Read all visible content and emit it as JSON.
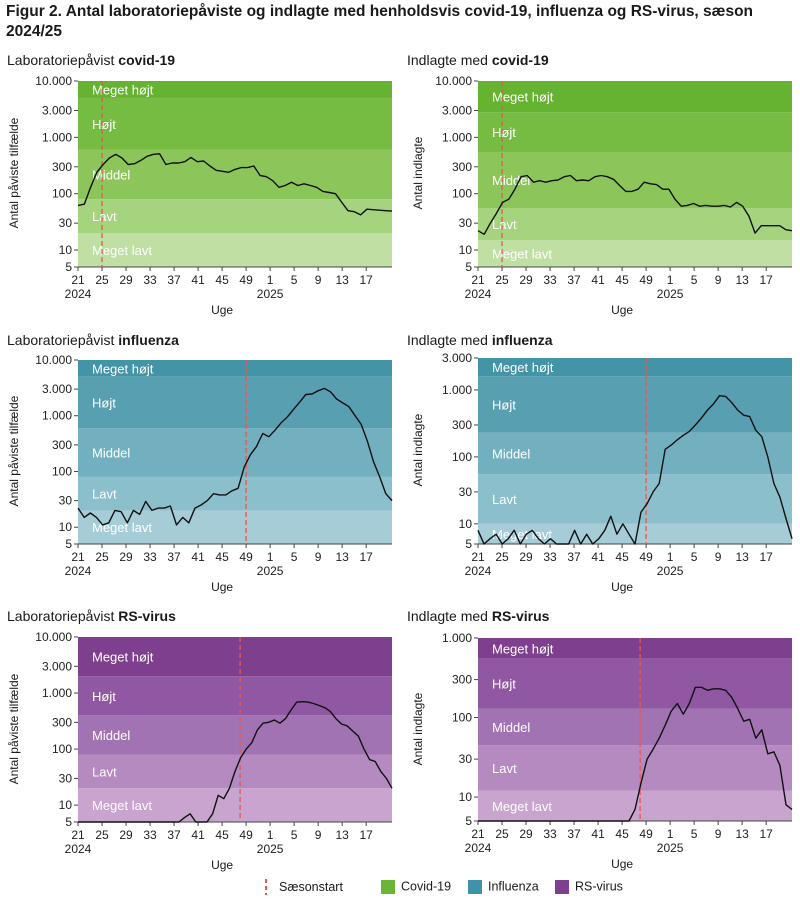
{
  "figure_title": "Figur 2. Antal laboratoriepåviste og indlagte med henholdsvis covid-19, influenza og RS-virus, sæson 2024/25",
  "x_axis_label": "Uge",
  "legend": [
    {
      "label": "Sæsonstart",
      "kind": "dash",
      "color": "#e8584f"
    },
    {
      "label": "Covid-19",
      "kind": "swatch",
      "color": "#6ab536"
    },
    {
      "label": "Influenza",
      "kind": "swatch",
      "color": "#3d93a8"
    },
    {
      "label": "RS-virus",
      "kind": "swatch",
      "color": "#7e3f8f"
    }
  ],
  "chart_data": [
    {
      "type": "line",
      "title_prefix": "Laboratoriepåvist ",
      "title_bold": "covid-19",
      "ylabel": "Antal påviste tilfælde",
      "y_scale": "log",
      "ylim": [
        5,
        10000
      ],
      "y_ticks": [
        5,
        10,
        30,
        100,
        300,
        1000,
        3000,
        10000
      ],
      "y_tick_labels": [
        "5",
        "10",
        "30",
        "100",
        "300",
        "1.000",
        "3.000",
        "10.000"
      ],
      "x_tick_labels": [
        "21",
        "25",
        "29",
        "33",
        "37",
        "41",
        "45",
        "49",
        "1",
        "5",
        "9",
        "13",
        "17"
      ],
      "x_year_labels": [
        "2024",
        "2025"
      ],
      "season_start_week": "25",
      "bands": [
        {
          "label": "Meget lavt",
          "from": 5,
          "to": 20,
          "color": "#bfdfa3"
        },
        {
          "label": "Lavt",
          "from": 20,
          "to": 80,
          "color": "#a6d37d"
        },
        {
          "label": "Middel",
          "from": 80,
          "to": 600,
          "color": "#8cc65b"
        },
        {
          "label": "Højt",
          "from": 600,
          "to": 5000,
          "color": "#76bb42"
        },
        {
          "label": "Meget højt",
          "from": 5000,
          "to": 10000,
          "color": "#66b331"
        }
      ],
      "series": [
        {
          "values": [
            62,
            65,
            130,
            240,
            330,
            430,
            500,
            430,
            330,
            340,
            390,
            460,
            500,
            510,
            330,
            350,
            350,
            370,
            440,
            370,
            380,
            310,
            260,
            250,
            240,
            270,
            290,
            290,
            310,
            210,
            200,
            170,
            130,
            140,
            160,
            140,
            150,
            140,
            130,
            110,
            105,
            100,
            70,
            50,
            48,
            42,
            53,
            52,
            51,
            50,
            49
          ]
        }
      ]
    },
    {
      "type": "line",
      "title_prefix": "Indlagte med ",
      "title_bold": "covid-19",
      "ylabel": "Antal indlagte",
      "y_scale": "log",
      "ylim": [
        5,
        10000
      ],
      "y_ticks": [
        5,
        10,
        30,
        100,
        300,
        1000,
        3000,
        10000
      ],
      "y_tick_labels": [
        "5",
        "10",
        "30",
        "100",
        "300",
        "1.000",
        "3.000",
        "10.000"
      ],
      "x_tick_labels": [
        "21",
        "25",
        "29",
        "33",
        "37",
        "41",
        "45",
        "49",
        "1",
        "5",
        "9",
        "13",
        "17"
      ],
      "x_year_labels": [
        "2024",
        "2025"
      ],
      "season_start_week": "25",
      "bands": [
        {
          "label": "Meget lavt",
          "from": 5,
          "to": 15,
          "color": "#bfdfa3"
        },
        {
          "label": "Lavt",
          "from": 15,
          "to": 55,
          "color": "#a6d37d"
        },
        {
          "label": "Middel",
          "from": 55,
          "to": 550,
          "color": "#8cc65b"
        },
        {
          "label": "Højt",
          "from": 550,
          "to": 2800,
          "color": "#76bb42"
        },
        {
          "label": "Meget højt",
          "from": 2800,
          "to": 10000,
          "color": "#66b331"
        }
      ],
      "series": [
        {
          "values": [
            22,
            19,
            30,
            45,
            70,
            80,
            120,
            200,
            210,
            160,
            170,
            160,
            170,
            175,
            200,
            210,
            170,
            175,
            170,
            200,
            210,
            200,
            180,
            140,
            110,
            110,
            120,
            160,
            150,
            145,
            120,
            120,
            80,
            60,
            62,
            67,
            60,
            62,
            60,
            60,
            62,
            58,
            70,
            60,
            40,
            20,
            27,
            27,
            27,
            27,
            23,
            22
          ]
        }
      ]
    },
    {
      "type": "line",
      "title_prefix": "Laboratoriepåvist ",
      "title_bold": "influenza",
      "ylabel": "Antal påviste tilfælde",
      "y_scale": "log",
      "ylim": [
        5,
        10000
      ],
      "y_ticks": [
        5,
        10,
        30,
        100,
        300,
        1000,
        3000,
        10000
      ],
      "y_tick_labels": [
        "5",
        "10",
        "30",
        "100",
        "300",
        "1.000",
        "3.000",
        "10.000"
      ],
      "x_tick_labels": [
        "21",
        "25",
        "29",
        "33",
        "37",
        "41",
        "45",
        "49",
        "1",
        "5",
        "9",
        "13",
        "17"
      ],
      "x_year_labels": [
        "2024",
        "2025"
      ],
      "season_start_week": "49",
      "bands": [
        {
          "label": "Meget lavt",
          "from": 5,
          "to": 20,
          "color": "#a5ccd7"
        },
        {
          "label": "Lavt",
          "from": 20,
          "to": 80,
          "color": "#8cbfcc"
        },
        {
          "label": "Middel",
          "from": 80,
          "to": 600,
          "color": "#72b0c0"
        },
        {
          "label": "Højt",
          "from": 600,
          "to": 5000,
          "color": "#589fb1"
        },
        {
          "label": "Meget højt",
          "from": 5000,
          "to": 10000,
          "color": "#4494a7"
        }
      ],
      "series": [
        {
          "values": [
            22,
            15,
            18,
            15,
            11,
            12,
            20,
            19,
            12,
            20,
            17,
            29,
            20,
            22,
            22,
            24,
            11,
            15,
            12,
            22,
            25,
            30,
            40,
            38,
            38,
            45,
            50,
            120,
            200,
            280,
            480,
            420,
            550,
            750,
            950,
            1300,
            1750,
            2400,
            2450,
            2800,
            3100,
            2700,
            2000,
            1700,
            1450,
            1000,
            700,
            350,
            150,
            80,
            40,
            30
          ]
        }
      ]
    },
    {
      "type": "line",
      "title_prefix": "Indlagte med ",
      "title_bold": "influenza",
      "ylabel": "Antal indlagte",
      "y_scale": "log",
      "ylim": [
        5,
        3000
      ],
      "y_ticks": [
        5,
        10,
        30,
        100,
        300,
        1000,
        3000
      ],
      "y_tick_labels": [
        "5",
        "10",
        "30",
        "100",
        "300",
        "1.000",
        "3.000"
      ],
      "x_tick_labels": [
        "21",
        "25",
        "29",
        "33",
        "37",
        "41",
        "45",
        "49",
        "1",
        "5",
        "9",
        "13",
        "17"
      ],
      "x_year_labels": [
        "2024",
        "2025"
      ],
      "season_start_week": "49",
      "bands": [
        {
          "label": "Meget lavt",
          "from": 5,
          "to": 10,
          "color": "#a5ccd7"
        },
        {
          "label": "Lavt",
          "from": 10,
          "to": 55,
          "color": "#8cbfcc"
        },
        {
          "label": "Middel",
          "from": 55,
          "to": 230,
          "color": "#72b0c0"
        },
        {
          "label": "Højt",
          "from": 230,
          "to": 1600,
          "color": "#589fb1"
        },
        {
          "label": "Meget højt",
          "from": 1600,
          "to": 3000,
          "color": "#4494a7"
        }
      ],
      "series": [
        {
          "values": [
            8,
            5,
            6,
            7,
            5,
            6,
            8,
            5,
            7,
            8,
            6,
            5,
            6,
            5,
            5,
            5,
            8,
            5,
            7,
            5,
            6,
            8,
            13,
            7,
            10,
            7,
            5,
            15,
            20,
            30,
            40,
            130,
            150,
            180,
            210,
            240,
            300,
            380,
            500,
            620,
            820,
            800,
            650,
            500,
            420,
            400,
            250,
            200,
            100,
            40,
            25,
            12,
            6
          ]
        }
      ]
    },
    {
      "type": "line",
      "title_prefix": "Laboratoriepåvist ",
      "title_bold": "RS-virus",
      "ylabel": "Antal påviste tilfælde",
      "y_scale": "log",
      "ylim": [
        5,
        10000
      ],
      "y_ticks": [
        5,
        10,
        30,
        100,
        300,
        1000,
        3000,
        10000
      ],
      "y_tick_labels": [
        "5",
        "10",
        "30",
        "100",
        "300",
        "1.000",
        "3.000",
        "10.000"
      ],
      "x_tick_labels": [
        "21",
        "25",
        "29",
        "33",
        "37",
        "41",
        "45",
        "49",
        "1",
        "5",
        "9",
        "13",
        "17"
      ],
      "x_year_labels": [
        "2024",
        "2025"
      ],
      "season_start_week": "48",
      "bands": [
        {
          "label": "Meget lavt",
          "from": 5,
          "to": 20,
          "color": "#c8a4cf"
        },
        {
          "label": "Lavt",
          "from": 20,
          "to": 80,
          "color": "#b58ac1"
        },
        {
          "label": "Middel",
          "from": 80,
          "to": 400,
          "color": "#a273b3"
        },
        {
          "label": "Højt",
          "from": 400,
          "to": 2000,
          "color": "#9057a2"
        },
        {
          "label": "Meget højt",
          "from": 2000,
          "to": 10000,
          "color": "#7f3f8f"
        }
      ],
      "series": [
        {
          "values": [
            5,
            5,
            5,
            5,
            5,
            5,
            5,
            5,
            5,
            5,
            5,
            5,
            5,
            5,
            5,
            5,
            5,
            5,
            5,
            6,
            7,
            5,
            5,
            5,
            7,
            15,
            13,
            20,
            40,
            70,
            100,
            130,
            220,
            290,
            300,
            330,
            290,
            350,
            500,
            690,
            700,
            690,
            650,
            600,
            550,
            470,
            350,
            280,
            260,
            210,
            170,
            100,
            65,
            60,
            40,
            30,
            20
          ]
        }
      ]
    },
    {
      "type": "line",
      "title_prefix": "Indlagte med ",
      "title_bold": "RS-virus",
      "ylabel": "Antal indlagte",
      "y_scale": "log",
      "ylim": [
        5,
        1000
      ],
      "y_ticks": [
        5,
        10,
        30,
        100,
        300,
        1000
      ],
      "y_tick_labels": [
        "5",
        "10",
        "30",
        "100",
        "300",
        "1.000"
      ],
      "x_tick_labels": [
        "21",
        "25",
        "29",
        "33",
        "37",
        "41",
        "45",
        "49",
        "1",
        "5",
        "9",
        "13",
        "17"
      ],
      "x_year_labels": [
        "2024",
        "2025"
      ],
      "season_start_week": "48",
      "bands": [
        {
          "label": "Meget lavt",
          "from": 5,
          "to": 12,
          "color": "#c8a4cf"
        },
        {
          "label": "Lavt",
          "from": 12,
          "to": 45,
          "color": "#b58ac1"
        },
        {
          "label": "Middel",
          "from": 45,
          "to": 130,
          "color": "#a273b3"
        },
        {
          "label": "Højt",
          "from": 130,
          "to": 550,
          "color": "#9057a2"
        },
        {
          "label": "Meget højt",
          "from": 550,
          "to": 1000,
          "color": "#7f3f8f"
        }
      ],
      "series": [
        {
          "values": [
            5,
            5,
            5,
            5,
            5,
            5,
            5,
            5,
            5,
            5,
            5,
            5,
            5,
            5,
            5,
            5,
            5,
            5,
            5,
            5,
            5,
            5,
            5,
            5,
            5,
            5,
            7,
            15,
            30,
            40,
            55,
            80,
            120,
            150,
            110,
            150,
            240,
            240,
            220,
            230,
            230,
            220,
            180,
            130,
            90,
            95,
            55,
            70,
            35,
            37,
            25,
            8,
            7
          ]
        }
      ]
    }
  ]
}
